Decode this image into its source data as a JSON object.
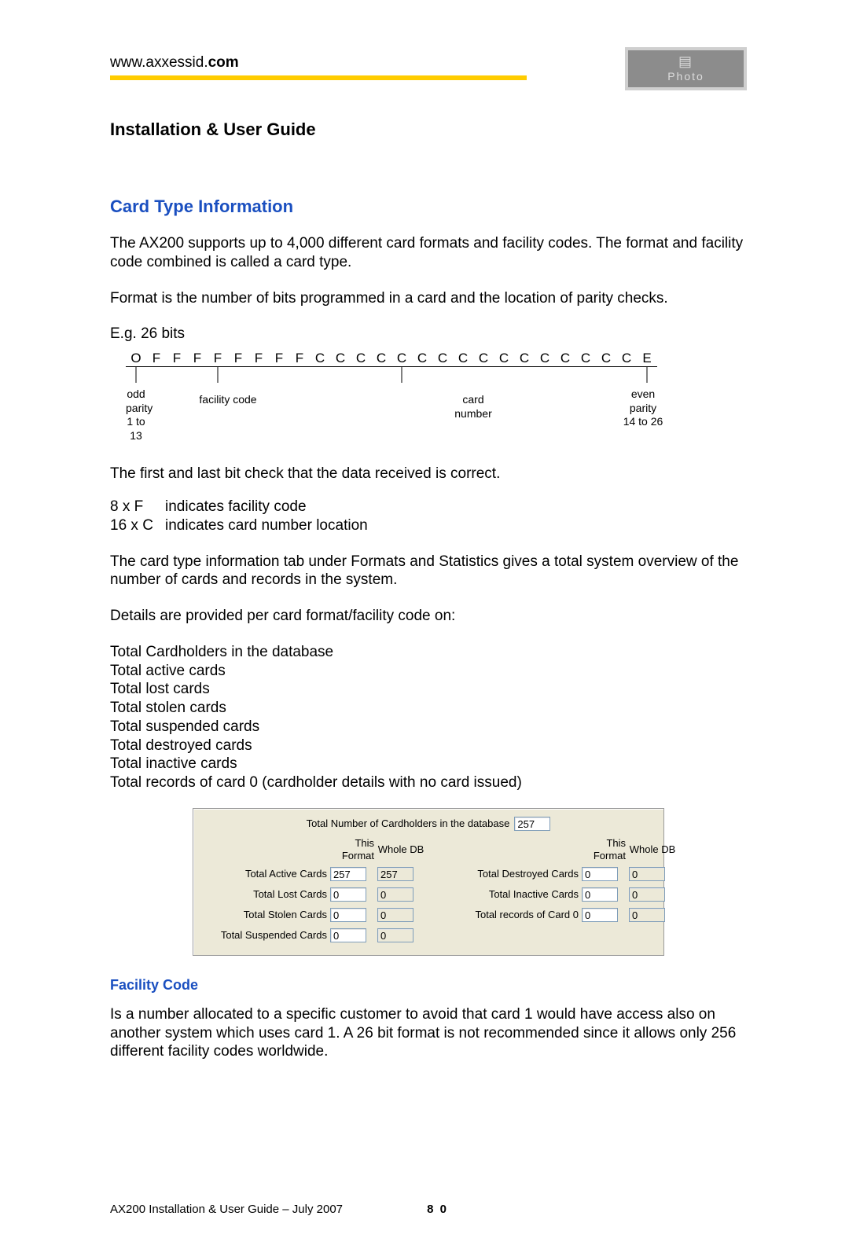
{
  "header": {
    "url_prefix": "www.axxessid.",
    "url_bold": "com",
    "photo_label": "Photo",
    "rule_color": "#ffcc00"
  },
  "title": "Installation & User Guide",
  "section_heading": "Card Type Information",
  "para1": "The AX200 supports up to 4,000 different card formats and facility codes.  The format and facility code combined is called a card type.",
  "para2": "Format is the number of bits programmed in a card and the location of parity checks.",
  "eg_label": "E.g. 26 bits",
  "bits": [
    "O",
    "F",
    "F",
    "F",
    "F",
    "F",
    "F",
    "F",
    "F",
    "C",
    "C",
    "C",
    "C",
    "C",
    "C",
    "C",
    "C",
    "C",
    "C",
    "C",
    "C",
    "C",
    "C",
    "C",
    "C",
    "E"
  ],
  "bit_labels": {
    "odd_parity_l1": "odd parity",
    "odd_parity_l2": "1 to 13",
    "facility_code": "facility code",
    "card_number": "card number",
    "even_parity_l1": "even parity",
    "even_parity_l2": "14 to 26"
  },
  "para3": "The first and last bit check that the data received is correct.",
  "indent": {
    "k1": "8 x F",
    "v1": "indicates facility code",
    "k2": "16 x C",
    "v2": "indicates card number location"
  },
  "para4": "The card type information tab under Formats and Statistics gives a total system overview of the number of cards and records in the system.",
  "para5": "Details are provided per card format/facility code on:",
  "list": [
    "Total Cardholders in the database",
    "Total active cards",
    "Total lost cards",
    "Total stolen cards",
    "Total suspended cards",
    "Total destroyed cards",
    "Total inactive cards",
    "Total records of card 0 (cardholder details with no card issued)"
  ],
  "stats": {
    "top_label": "Total Number of Cardholders in the database",
    "top_value": "257",
    "hdr_this_format": "This Format",
    "hdr_whole_db": "Whole DB",
    "left_rows": [
      {
        "label": "Total Active Cards",
        "this": "257",
        "whole": "257"
      },
      {
        "label": "Total Lost Cards",
        "this": "0",
        "whole": "0"
      },
      {
        "label": "Total Stolen Cards",
        "this": "0",
        "whole": "0"
      },
      {
        "label": "Total Suspended Cards",
        "this": "0",
        "whole": "0"
      }
    ],
    "right_rows": [
      {
        "label": "Total Destroyed Cards",
        "this": "0",
        "whole": "0"
      },
      {
        "label": "Total Inactive Cards",
        "this": "0",
        "whole": "0"
      },
      {
        "label": "Total records of Card 0",
        "this": "0",
        "whole": "0"
      }
    ]
  },
  "sub_heading": "Facility Code",
  "para6": "Is a number allocated to a specific customer to avoid that card 1 would have access also on another system which uses card 1.  A 26 bit format is not recommended since it allows only 256 different facility codes worldwide.",
  "footer": {
    "left": "AX200 Installation & User Guide – July 2007",
    "page": "8 0"
  }
}
